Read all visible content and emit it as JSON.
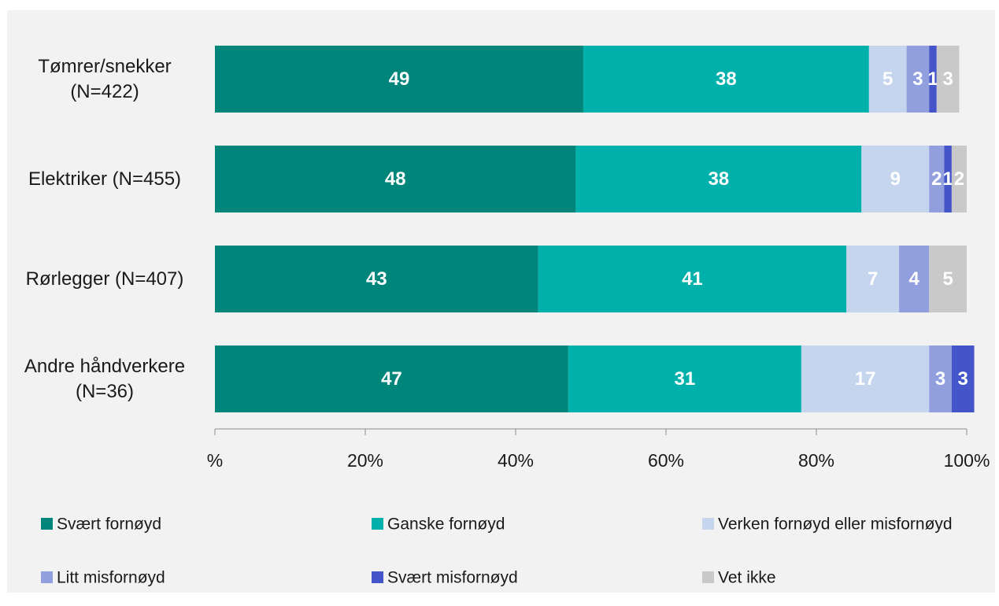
{
  "chart_data": {
    "type": "bar",
    "orientation": "horizontal",
    "stacked": true,
    "categories": [
      [
        "Tømrer/snekker",
        "(N=422)"
      ],
      [
        "Elektriker (N=455)"
      ],
      [
        "Rørlegger (N=407)"
      ],
      [
        "Andre håndverkere",
        "(N=36)"
      ]
    ],
    "series": [
      {
        "name": "Svært fornøyd",
        "color": "#00857A",
        "values": [
          49,
          48,
          43,
          47
        ]
      },
      {
        "name": "Ganske fornøyd",
        "color": "#00B0AA",
        "values": [
          38,
          38,
          41,
          31
        ]
      },
      {
        "name": "Verken fornøyd eller misfornøyd",
        "color": "#C5D5EE",
        "values": [
          5,
          9,
          7,
          17
        ]
      },
      {
        "name": "Litt misfornøyd",
        "color": "#919FDF",
        "values": [
          3,
          2,
          4,
          3
        ]
      },
      {
        "name": "Svært misfornøyd",
        "color": "#4355C8",
        "values": [
          1,
          1,
          0,
          3
        ]
      },
      {
        "name": "Vet ikke",
        "color": "#C9C9C9",
        "values": [
          3,
          2,
          5,
          0
        ]
      }
    ],
    "xlim": [
      0,
      100
    ],
    "xticks": [
      "%",
      "20%",
      "40%",
      "60%",
      "80%",
      "100%"
    ],
    "grid": false,
    "legend_position": "bottom"
  }
}
